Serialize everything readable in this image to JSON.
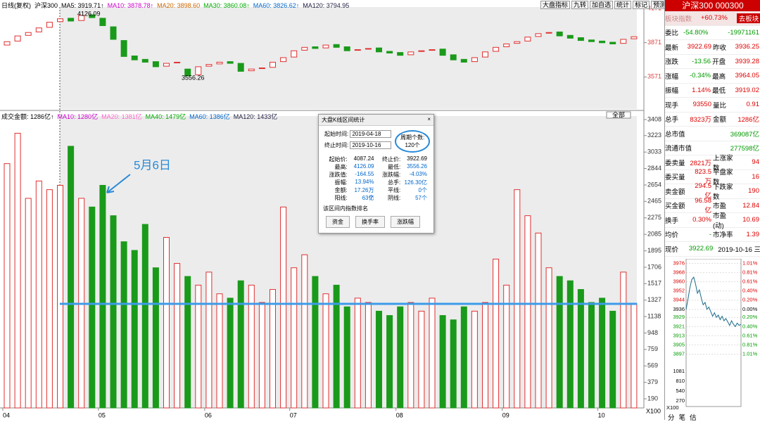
{
  "toolbar": [
    "大盘指标",
    "九转",
    "加自选",
    "统计",
    "标记",
    "预测"
  ],
  "price_legend": [
    "日线(复权)",
    "沪深300",
    "MA5: 3919.71↑",
    "MA10: 3878.78↑",
    "MA20: 3898.60",
    "MA30: 3860.08↑",
    "MA60: 3826.62↑",
    "MA120: 3794.95"
  ],
  "volume_legend": [
    "成交金额: 1286亿↑",
    "MA10: 1280亿",
    "MA20: 1381亿",
    "MA40: 1479亿",
    "MA60: 1386亿",
    "MA120: 1433亿"
  ],
  "all_button": "全部",
  "chart_data": {
    "type": "candlestick",
    "categories": [
      "04",
      "05",
      "06",
      "07",
      "08",
      "09",
      "10"
    ],
    "category_index": [
      0,
      9,
      19,
      27,
      37,
      47,
      56
    ],
    "open": [
      3850,
      3885,
      3935,
      3965,
      4005,
      4055,
      4085,
      4065,
      4115,
      4085,
      4010,
      3890,
      3755,
      3725,
      3705,
      3665,
      3695,
      3640,
      3590,
      3665,
      3685,
      3705,
      3690,
      3625,
      3645,
      3655,
      3705,
      3745,
      3805,
      3835,
      3825,
      3855,
      3835,
      3805,
      3815,
      3825,
      3795,
      3785,
      3765,
      3795,
      3805,
      3815,
      3765,
      3725,
      3705,
      3745,
      3795,
      3835,
      3865,
      3885,
      3925,
      3955,
      3965,
      3935,
      3915,
      3895,
      3885,
      3875,
      3865,
      3905
    ],
    "close": [
      3880,
      3930,
      3960,
      4000,
      4050,
      4080,
      4060,
      4110,
      4090,
      4020,
      3900,
      3750,
      3720,
      3700,
      3660,
      3690,
      3700,
      3580,
      3660,
      3680,
      3700,
      3690,
      3620,
      3640,
      3650,
      3700,
      3740,
      3800,
      3830,
      3820,
      3850,
      3830,
      3800,
      3810,
      3820,
      3790,
      3780,
      3760,
      3790,
      3800,
      3810,
      3760,
      3720,
      3700,
      3740,
      3790,
      3830,
      3860,
      3880,
      3920,
      3950,
      3960,
      3930,
      3910,
      3890,
      3880,
      3870,
      3860,
      3900,
      3923
    ],
    "volume": [
      2900,
      3250,
      2500,
      2700,
      2600,
      2650,
      3100,
      2500,
      2400,
      2650,
      2300,
      2000,
      1900,
      2200,
      1700,
      2050,
      1750,
      1600,
      1500,
      1650,
      1400,
      1350,
      1550,
      1500,
      1300,
      1450,
      2400,
      1700,
      1850,
      1600,
      1400,
      1500,
      1250,
      1350,
      1300,
      1200,
      1150,
      1250,
      1300,
      1200,
      1350,
      1150,
      1100,
      1250,
      1200,
      1300,
      1800,
      1500,
      2600,
      2300,
      2100,
      1700,
      1600,
      1550,
      1450,
      1300,
      1350,
      1200,
      1650,
      1286
    ],
    "ylim": [
      3290,
      4183
    ],
    "yticks": [
      4171,
      3871,
      3571
    ],
    "vlim": [
      85,
      3448
    ],
    "vticks": [
      3408,
      3223,
      3033,
      2844,
      2654,
      2465,
      2275,
      2085,
      1895,
      1706,
      1517,
      1327,
      1138,
      948,
      759,
      569,
      379,
      190
    ],
    "vunit": "X100",
    "high_label": "4126.09",
    "low_label": "3556.26",
    "annotation": "5月6日"
  },
  "dialog": {
    "title": "大盘K线区间统计",
    "start_label": "起始时间:",
    "start": "2019-04-18",
    "end_label": "终止时间:",
    "end": "2019-10-16",
    "count_label": "周期个数:",
    "count": "120个",
    "stats": [
      [
        "起始价:",
        "4087.24",
        "终止价:",
        "3922.69"
      ],
      [
        "最高:",
        "4126.09",
        "最低:",
        "3556.26"
      ],
      [
        "涨跌值:",
        "-164.55",
        "涨跌幅:",
        "-4.03%"
      ],
      [
        "振幅:",
        "13.94%",
        "总手:",
        "126.30亿"
      ],
      [
        "金额:",
        "17.26万亿",
        "平线:",
        "0个"
      ],
      [
        "阳线:",
        "63个",
        "阴线:",
        "57个"
      ]
    ],
    "rank": "该区间内指数排名",
    "buttons": [
      "资金",
      "换手率",
      "涨跌幅"
    ]
  },
  "panel": {
    "title": "沪深300 000300",
    "sub": "板块指数",
    "sub_value": "+60.73%",
    "sub_button": "去板块",
    "rows": [
      [
        "委比",
        "-54.80%",
        "",
        "-19971161"
      ],
      [
        "最新",
        "3922.69",
        "昨收",
        "3936.25"
      ],
      [
        "涨跌",
        "-13.56",
        "开盘",
        "3939.28"
      ],
      [
        "涨幅",
        "-0.34%",
        "最高",
        "3964.05"
      ],
      [
        "振幅",
        "1.14%",
        "最低",
        "3919.02"
      ],
      [
        "现手",
        "93550",
        "量比",
        "0.91"
      ],
      [
        "总手",
        "8323万",
        "金额",
        "1286亿"
      ]
    ],
    "caps": [
      [
        "总市值",
        "369087亿"
      ],
      [
        "流通市值",
        "277598亿"
      ]
    ],
    "rows2": [
      [
        "委卖量",
        "2821万",
        "上涨家数",
        "94"
      ],
      [
        "委买量",
        "823.5万",
        "平盘家数",
        "16"
      ],
      [
        "卖金额",
        "294.5亿",
        "下跌家数",
        "190"
      ],
      [
        "买金额",
        "96.58亿",
        "市盈",
        "12.84"
      ],
      [
        "换手",
        "0.30%",
        "市盈(动)",
        "10.69"
      ],
      [
        "均价",
        "-",
        "市净率",
        "1.39"
      ]
    ],
    "now_label": "现价",
    "now": "3922.69",
    "date": "2019-10-16 三",
    "tabs": [
      "分",
      "笔",
      "估"
    ]
  },
  "intraday": {
    "type": "line",
    "values": [
      3936,
      3945,
      3955,
      3962,
      3964,
      3958,
      3950,
      3953,
      3946,
      3940,
      3942,
      3936,
      3938,
      3934,
      3930,
      3933,
      3929,
      3931,
      3927,
      3930,
      3926,
      3928,
      3925,
      3922,
      3926,
      3923,
      3921,
      3924,
      3922,
      3923
    ],
    "ylim": [
      3893,
      3980
    ],
    "yticks": [
      3976,
      3968,
      3960,
      3952,
      3944,
      3936,
      3929,
      3921,
      3913,
      3905,
      3897
    ],
    "y2labels": [
      "1.01%",
      "0.81%",
      "0.61%",
      "0.40%",
      "0.20%",
      "0.00%",
      "0.20%",
      "0.40%",
      "0.61%",
      "0.81%",
      "1.01%"
    ],
    "vticks": [
      "1081",
      "810",
      "540",
      "270"
    ],
    "vunit": "X100"
  }
}
